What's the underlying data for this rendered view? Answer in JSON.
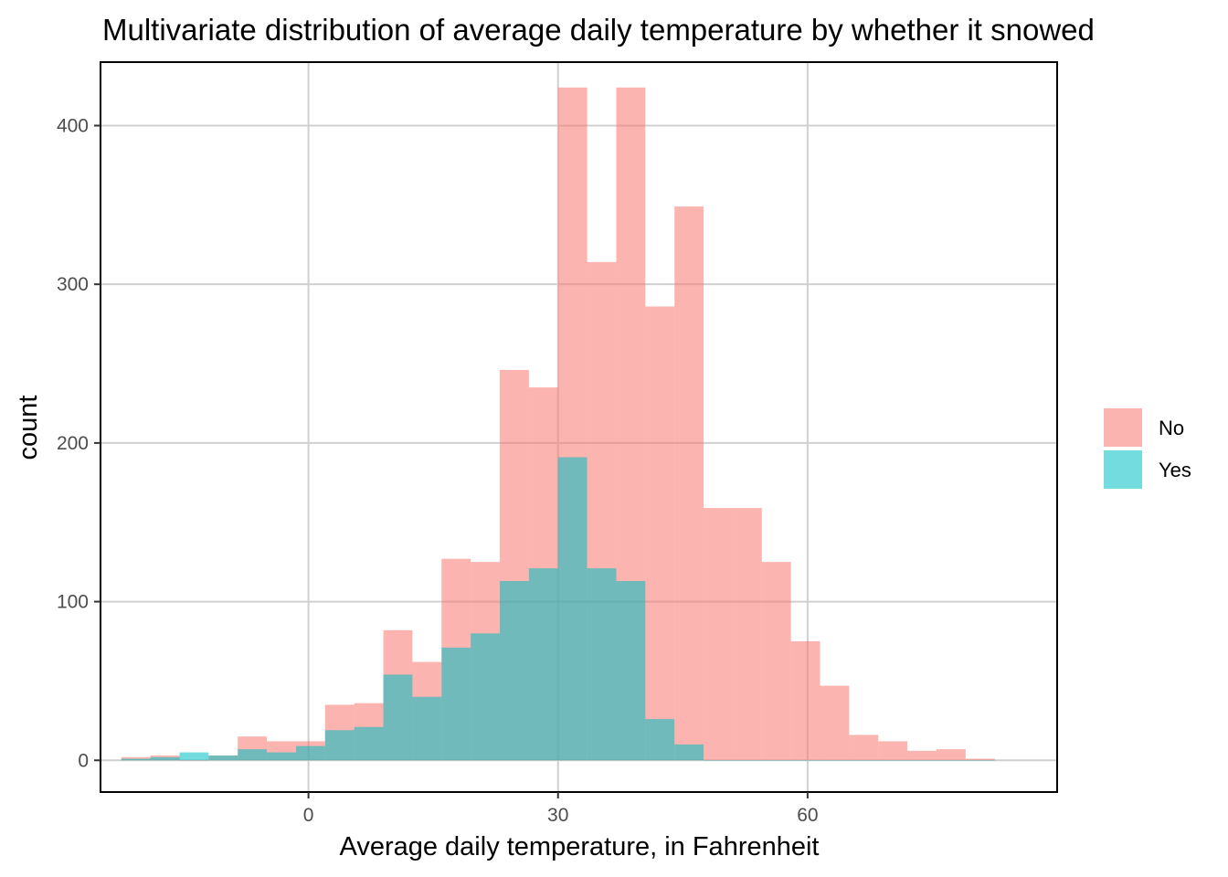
{
  "chart_data": {
    "type": "bar",
    "title": "Multivariate distribution of average daily temperature by whether it snowed",
    "xlabel": "Average daily temperature, in Fahrenheit",
    "ylabel": "count",
    "xlim": [
      -25,
      90
    ],
    "ylim": [
      -20,
      440
    ],
    "x_ticks": [
      0,
      30,
      60
    ],
    "y_ticks": [
      0,
      100,
      200,
      300,
      400
    ],
    "grid": true,
    "legend_position": "right",
    "bin_width": 3.5,
    "bin_start": -22.5,
    "series": [
      {
        "name": "No",
        "color": "#f8766d",
        "values": [
          2,
          3,
          0,
          3,
          15,
          12,
          12,
          35,
          36,
          82,
          62,
          127,
          125,
          246,
          235,
          424,
          314,
          424,
          286,
          349,
          159,
          159,
          125,
          75,
          47,
          16,
          12,
          6,
          7,
          1
        ]
      },
      {
        "name": "Yes",
        "color": "#00bfc4",
        "values": [
          1,
          2,
          5,
          3,
          7,
          5,
          9,
          19,
          21,
          54,
          40,
          71,
          80,
          113,
          121,
          191,
          121,
          113,
          26,
          10,
          0,
          0,
          0,
          0,
          0,
          0,
          0,
          0,
          0,
          0
        ]
      }
    ]
  }
}
